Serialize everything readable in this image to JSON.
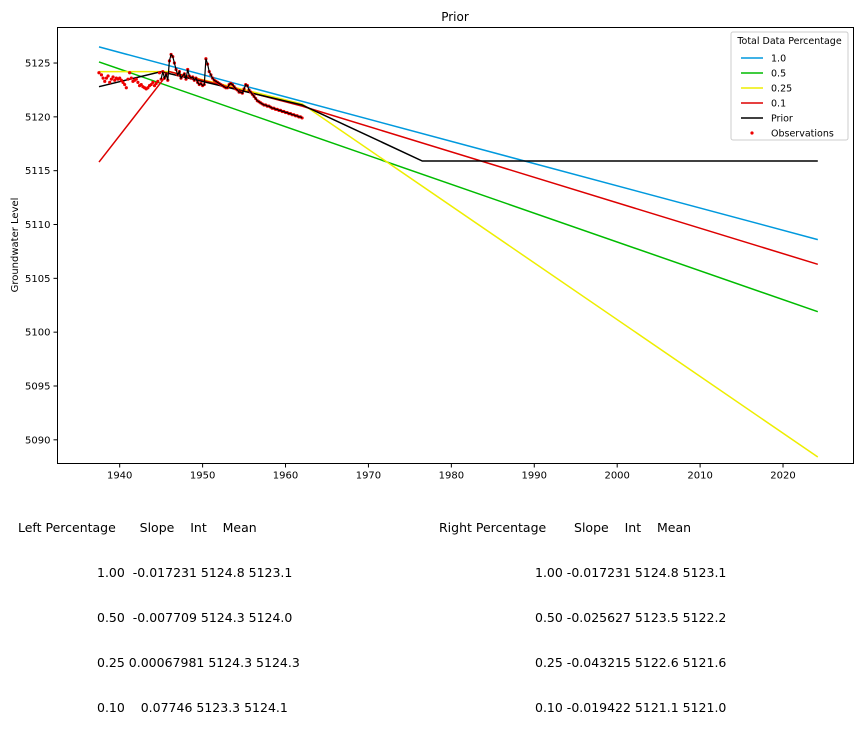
{
  "chart_data": {
    "type": "line",
    "title": "Prior",
    "xlabel": "",
    "ylabel": "Groundwater Level",
    "xlim": [
      1932.5,
      2028.5
    ],
    "ylim": [
      5087.8,
      5128.3
    ],
    "xticks": [
      1940,
      1950,
      1960,
      1970,
      1980,
      1990,
      2000,
      2010,
      2020
    ],
    "yticks": [
      5090,
      5095,
      5100,
      5105,
      5110,
      5115,
      5120,
      5125
    ],
    "legend": {
      "title": "Total Data Percentage",
      "placement": "top-right"
    },
    "series": [
      {
        "name": "1.0",
        "color": "#0099dd",
        "x": [
          1937.5,
          2024.2
        ],
        "y": [
          5126.5,
          5108.6
        ]
      },
      {
        "name": "0.5",
        "color": "#00bb00",
        "x": [
          1937.5,
          2024.2
        ],
        "y": [
          5125.1,
          5101.9
        ]
      },
      {
        "name": "0.25",
        "color": "#eeee00",
        "x": [
          1937.5,
          1946.0,
          1962.0,
          2024.2
        ],
        "y": [
          5124.2,
          5124.2,
          5121.2,
          5088.4
        ]
      },
      {
        "name": "0.1",
        "color": "#dd0000",
        "x": [
          1937.5,
          1946.0,
          1962.0,
          2024.2
        ],
        "y": [
          5115.8,
          5124.2,
          5121.0,
          5106.3
        ]
      },
      {
        "name": "Prior",
        "color": "#000000",
        "x": [
          1937.5,
          1945.0,
          1962.0,
          1976.5,
          2024.2
        ],
        "y": [
          5122.8,
          5124.2,
          5121.1,
          5115.9,
          5115.9
        ]
      },
      {
        "name": "Observations",
        "color": "#ee0000",
        "marker": "dot",
        "x": [
          1937.5,
          1937.8,
          1938.0,
          1938.2,
          1938.4,
          1938.6,
          1938.8,
          1939.0,
          1939.2,
          1939.4,
          1939.6,
          1939.8,
          1940.0,
          1940.2,
          1940.4,
          1940.6,
          1940.8,
          1941.0,
          1941.2,
          1941.4,
          1941.6,
          1941.8,
          1942.0,
          1942.2,
          1942.4,
          1942.6,
          1942.8,
          1943.0,
          1943.2,
          1943.4,
          1943.6,
          1943.8,
          1944.0,
          1944.2,
          1944.4,
          1944.6,
          1944.8,
          1945.0,
          1945.2,
          1945.4,
          1945.6,
          1945.8,
          1946.0,
          1946.2,
          1946.4,
          1946.6,
          1946.8,
          1947.0,
          1947.2,
          1947.4,
          1947.6,
          1947.8,
          1948.0,
          1948.2,
          1948.4,
          1948.6,
          1948.8,
          1949.0,
          1949.2,
          1949.4,
          1949.6,
          1949.8,
          1950.0,
          1950.2,
          1950.4,
          1950.6,
          1950.8,
          1951.0,
          1951.2,
          1951.4,
          1951.6,
          1951.8,
          1952.0,
          1952.2,
          1952.4,
          1952.6,
          1952.8,
          1953.0,
          1953.2,
          1953.4,
          1953.6,
          1953.8,
          1954.0,
          1954.2,
          1954.4,
          1954.6,
          1954.8,
          1955.0,
          1955.2,
          1955.4,
          1955.6,
          1955.8,
          1956.0,
          1956.2,
          1956.4,
          1956.6,
          1956.8,
          1957.0,
          1957.2,
          1957.4,
          1957.6,
          1957.8,
          1958.0,
          1958.2,
          1958.4,
          1958.6,
          1958.8,
          1959.0,
          1959.2,
          1959.4,
          1959.6,
          1959.8,
          1960.0,
          1960.2,
          1960.4,
          1960.6,
          1960.8,
          1961.0,
          1961.2,
          1961.4,
          1961.6,
          1961.8,
          1962.0
        ],
        "y": [
          5124.1,
          5123.9,
          5123.6,
          5123.3,
          5123.6,
          5123.8,
          5123.2,
          5123.5,
          5123.7,
          5123.4,
          5123.6,
          5123.5,
          5123.6,
          5123.4,
          5123.2,
          5123.0,
          5122.7,
          5123.5,
          5124.1,
          5123.6,
          5123.3,
          5123.4,
          5123.5,
          5123.2,
          5122.9,
          5123.0,
          5122.8,
          5122.7,
          5122.6,
          5122.7,
          5122.9,
          5123.0,
          5123.2,
          5122.9,
          5123.1,
          5123.3,
          5124.1,
          5123.5,
          5124.2,
          5123.6,
          5124.0,
          5123.4,
          5125.2,
          5125.8,
          5125.6,
          5125.0,
          5124.4,
          5123.9,
          5124.2,
          5123.6,
          5123.8,
          5124.0,
          5123.5,
          5124.4,
          5123.8,
          5123.6,
          5123.7,
          5123.4,
          5123.6,
          5123.2,
          5123.0,
          5123.1,
          5122.9,
          5123.0,
          5125.4,
          5124.9,
          5124.2,
          5123.9,
          5123.6,
          5123.4,
          5123.3,
          5123.2,
          5123.1,
          5123.0,
          5122.9,
          5122.8,
          5122.7,
          5122.7,
          5123.0,
          5123.1,
          5123.0,
          5122.8,
          5122.6,
          5122.5,
          5122.3,
          5122.3,
          5122.2,
          5122.6,
          5123.0,
          5122.9,
          5122.5,
          5122.3,
          5122.1,
          5121.9,
          5121.7,
          5121.5,
          5121.4,
          5121.3,
          5121.2,
          5121.1,
          5121.1,
          5121.0,
          5121.0,
          5120.9,
          5120.8,
          5120.8,
          5120.7,
          5120.7,
          5120.6,
          5120.6,
          5120.5,
          5120.5,
          5120.4,
          5120.4,
          5120.3,
          5120.3,
          5120.2,
          5120.2,
          5120.1,
          5120.1,
          5120.0,
          5120.0,
          5119.9
        ]
      }
    ]
  },
  "stats": {
    "left": {
      "header": "Left Percentage      Slope    Int    Mean",
      "rows": [
        "1.00  -0.017231 5124.8 5123.1",
        "0.50  -0.007709 5124.3 5124.0",
        "0.25 0.00067981 5124.3 5124.3",
        "0.10    0.07746 5123.3 5124.1"
      ]
    },
    "right": {
      "header": "Right Percentage       Slope    Int    Mean",
      "rows": [
        "1.00 -0.017231 5124.8 5123.1",
        "0.50 -0.025627 5123.5 5122.2",
        "0.25 -0.043215 5122.6 5121.6",
        "0.10 -0.019422 5121.1 5121.0"
      ]
    }
  }
}
